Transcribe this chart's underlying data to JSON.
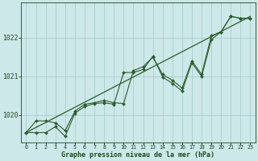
{
  "title": "Graphe pression niveau de la mer (hPa)",
  "bg_color": "#cde8e8",
  "plot_bg": "#cde8e8",
  "grid_color": "#a0c8c8",
  "line_color": "#2a5c2a",
  "xlim": [
    -0.5,
    23.5
  ],
  "ylim": [
    1019.3,
    1022.9
  ],
  "yticks": [
    1020,
    1021,
    1022
  ],
  "xticks": [
    0,
    1,
    2,
    3,
    4,
    5,
    6,
    7,
    8,
    9,
    10,
    11,
    12,
    13,
    14,
    15,
    16,
    17,
    18,
    19,
    20,
    21,
    22,
    23
  ],
  "series1_x": [
    0,
    1,
    2,
    3,
    4,
    5,
    6,
    7,
    8,
    9,
    10,
    11,
    12,
    13,
    14,
    15,
    16,
    17,
    18,
    19,
    20,
    21,
    22,
    23
  ],
  "series1_y": [
    1019.55,
    1019.85,
    1019.85,
    1019.8,
    1019.6,
    1020.1,
    1020.28,
    1020.32,
    1020.38,
    1020.32,
    1020.3,
    1021.15,
    1021.25,
    1021.5,
    1021.05,
    1020.9,
    1020.7,
    1021.4,
    1021.05,
    1022.05,
    1022.15,
    1022.55,
    1022.5,
    1022.5
  ],
  "series2_x": [
    0,
    1,
    2,
    3,
    4,
    5,
    6,
    7,
    8,
    9,
    10,
    11,
    12,
    13,
    14,
    15,
    16,
    17,
    18,
    19,
    20,
    21,
    22,
    23
  ],
  "series2_y": [
    1019.55,
    1019.55,
    1019.55,
    1019.7,
    1019.45,
    1020.05,
    1020.22,
    1020.3,
    1020.32,
    1020.28,
    1021.1,
    1021.1,
    1021.18,
    1021.52,
    1020.98,
    1020.82,
    1020.62,
    1021.35,
    1021.0,
    1021.95,
    1022.15,
    1022.55,
    1022.5,
    1022.5
  ],
  "trend_x": [
    0,
    23
  ],
  "trend_y": [
    1019.55,
    1022.55
  ]
}
